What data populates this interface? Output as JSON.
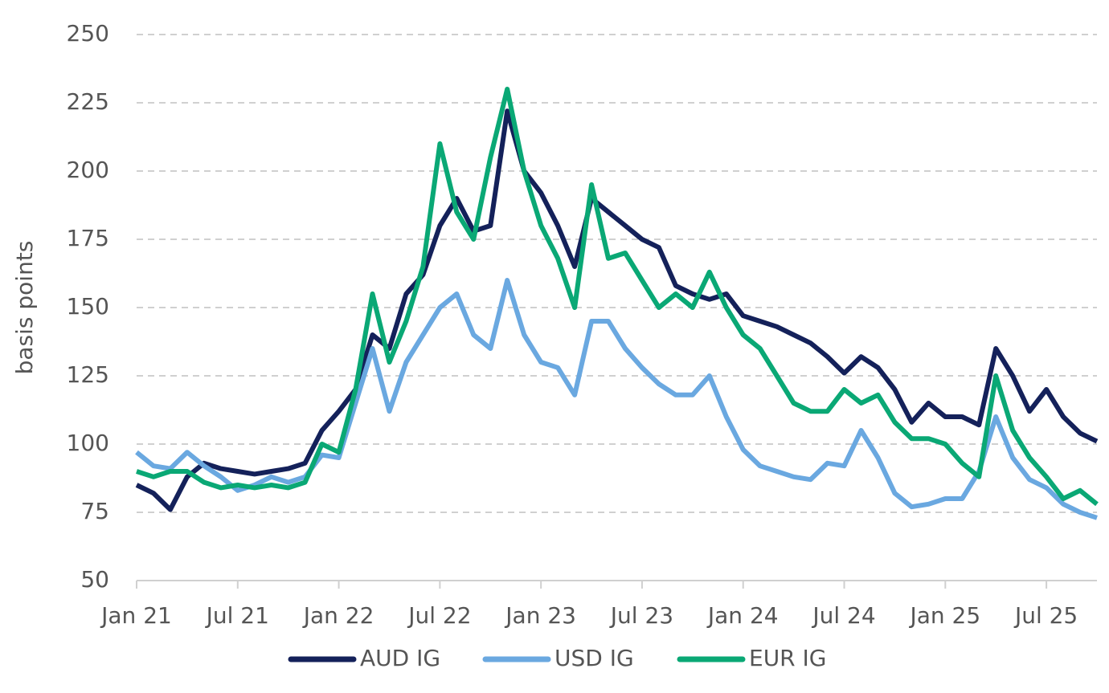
{
  "chart_data": {
    "type": "line",
    "ylabel": "basis points",
    "categories": [
      "Jan 21",
      null,
      null,
      null,
      null,
      null,
      "Jul 21",
      null,
      null,
      null,
      null,
      null,
      "Jan 22",
      null,
      null,
      null,
      null,
      null,
      "Jul 22",
      null,
      null,
      null,
      null,
      null,
      "Jan 23",
      null,
      null,
      null,
      null,
      null,
      "Jul 23",
      null,
      null,
      null,
      null,
      null,
      "Jan 24",
      null,
      null,
      null,
      null,
      null,
      "Jul 24",
      null,
      null,
      null,
      null,
      null,
      "Jan 25",
      null,
      null,
      null,
      null,
      null,
      "Jul 25",
      null,
      null,
      null
    ],
    "series": [
      {
        "name": "AUD IG",
        "color": "#14215a",
        "values": [
          85,
          82,
          76,
          88,
          93,
          91,
          90,
          89,
          90,
          91,
          93,
          105,
          112,
          120,
          140,
          135,
          155,
          162,
          180,
          190,
          178,
          180,
          222,
          200,
          192,
          180,
          165,
          190,
          185,
          180,
          175,
          172,
          158,
          155,
          153,
          155,
          147,
          145,
          143,
          140,
          137,
          132,
          126,
          132,
          128,
          120,
          108,
          115,
          110,
          110,
          107,
          135,
          125,
          112,
          120,
          110,
          104,
          101
        ]
      },
      {
        "name": "USD IG",
        "color": "#6aa8e0",
        "values": [
          97,
          92,
          91,
          97,
          92,
          88,
          83,
          85,
          88,
          86,
          88,
          96,
          95,
          115,
          135,
          112,
          130,
          140,
          150,
          155,
          140,
          135,
          160,
          140,
          130,
          128,
          118,
          145,
          145,
          135,
          128,
          122,
          118,
          118,
          125,
          110,
          98,
          92,
          90,
          88,
          87,
          93,
          92,
          105,
          95,
          82,
          77,
          78,
          80,
          80,
          90,
          110,
          95,
          87,
          84,
          78,
          75,
          73
        ]
      },
      {
        "name": "EUR IG",
        "color": "#0aa875",
        "values": [
          90,
          88,
          90,
          90,
          86,
          84,
          85,
          84,
          85,
          84,
          86,
          100,
          97,
          120,
          155,
          130,
          145,
          165,
          210,
          185,
          175,
          205,
          230,
          200,
          180,
          168,
          150,
          195,
          168,
          170,
          160,
          150,
          155,
          150,
          163,
          150,
          140,
          135,
          125,
          115,
          112,
          112,
          120,
          115,
          118,
          108,
          102,
          102,
          100,
          93,
          88,
          125,
          105,
          95,
          88,
          80,
          83,
          78
        ]
      }
    ],
    "ylim": [
      50,
      250
    ],
    "yticks": [
      50,
      75,
      100,
      125,
      150,
      175,
      200,
      225,
      250
    ],
    "grid": true,
    "legend": "bottom"
  }
}
